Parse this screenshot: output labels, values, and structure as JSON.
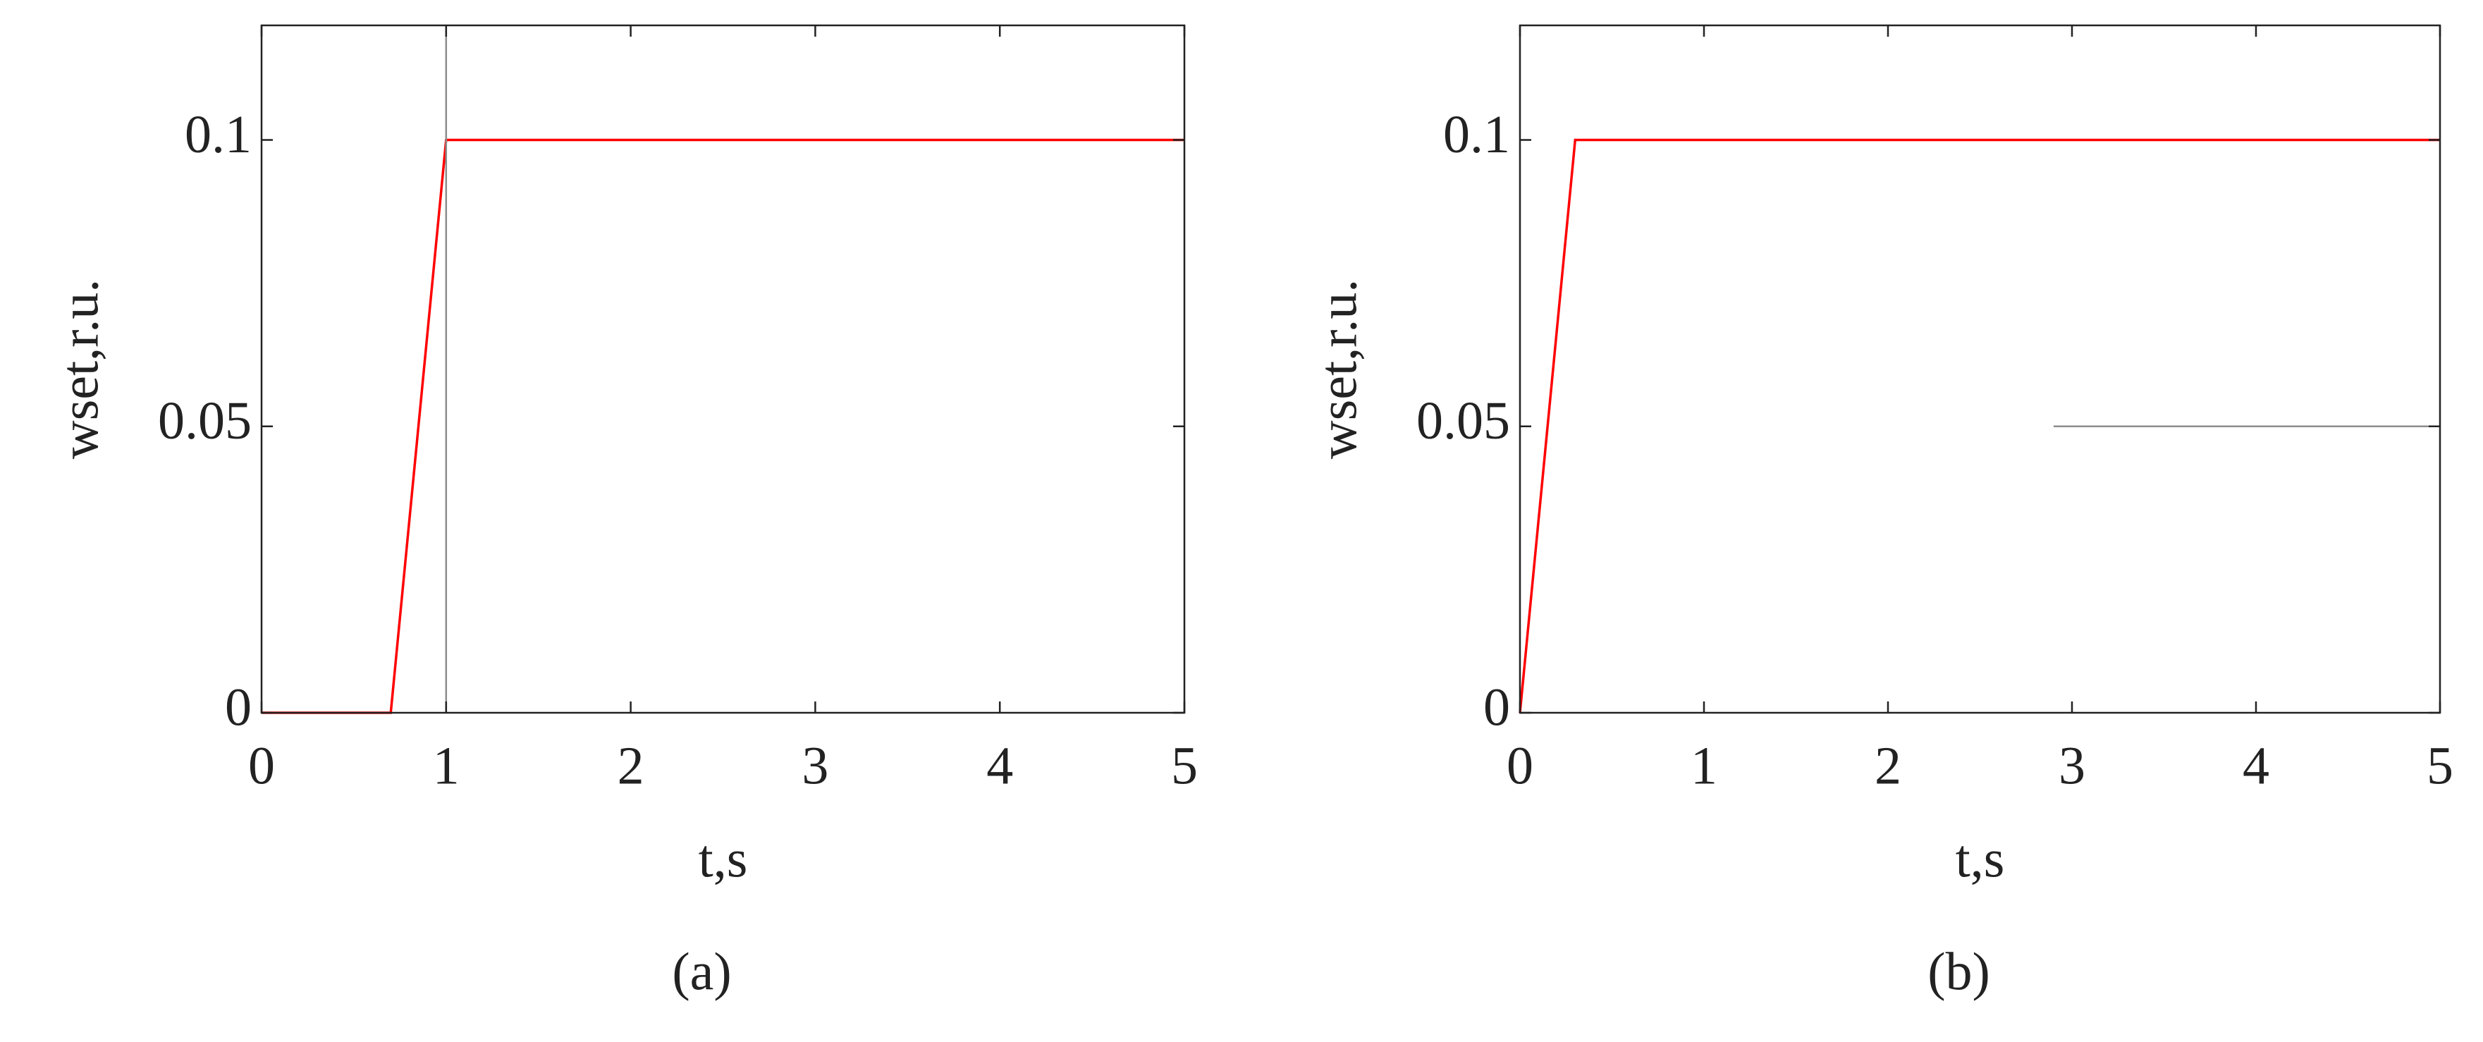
{
  "chart_data": [
    {
      "type": "line",
      "xlabel": "t,s",
      "ylabel": "wset,r.u.",
      "caption": "(a)",
      "xlim": [
        0,
        5
      ],
      "xticks": [
        0,
        1,
        2,
        3,
        4,
        5
      ],
      "ylim": [
        0,
        0.12
      ],
      "yticks": [
        0,
        0.05,
        0.1
      ],
      "series": [
        {
          "color": "#ff0000",
          "x": [
            0,
            0.7,
            1,
            5
          ],
          "values": [
            0,
            0,
            0.1,
            0.1
          ]
        },
        {
          "color": "#8c8c8c",
          "x": [
            1,
            1
          ],
          "values": [
            0,
            0.12
          ]
        }
      ]
    },
    {
      "type": "line",
      "xlabel": "t,s",
      "ylabel": "wset,r.u.",
      "caption": "(b)",
      "xlim": [
        0,
        5
      ],
      "xticks": [
        0,
        1,
        2,
        3,
        4,
        5
      ],
      "ylim": [
        0,
        0.12
      ],
      "yticks": [
        0,
        0.05,
        0.1
      ],
      "series": [
        {
          "color": "#ff0000",
          "x": [
            0,
            0.3,
            5
          ],
          "values": [
            0,
            0.1,
            0.1
          ]
        },
        {
          "color": "#8c8c8c",
          "x": [
            2.9,
            5
          ],
          "values": [
            0.05,
            0.05
          ]
        }
      ]
    }
  ]
}
